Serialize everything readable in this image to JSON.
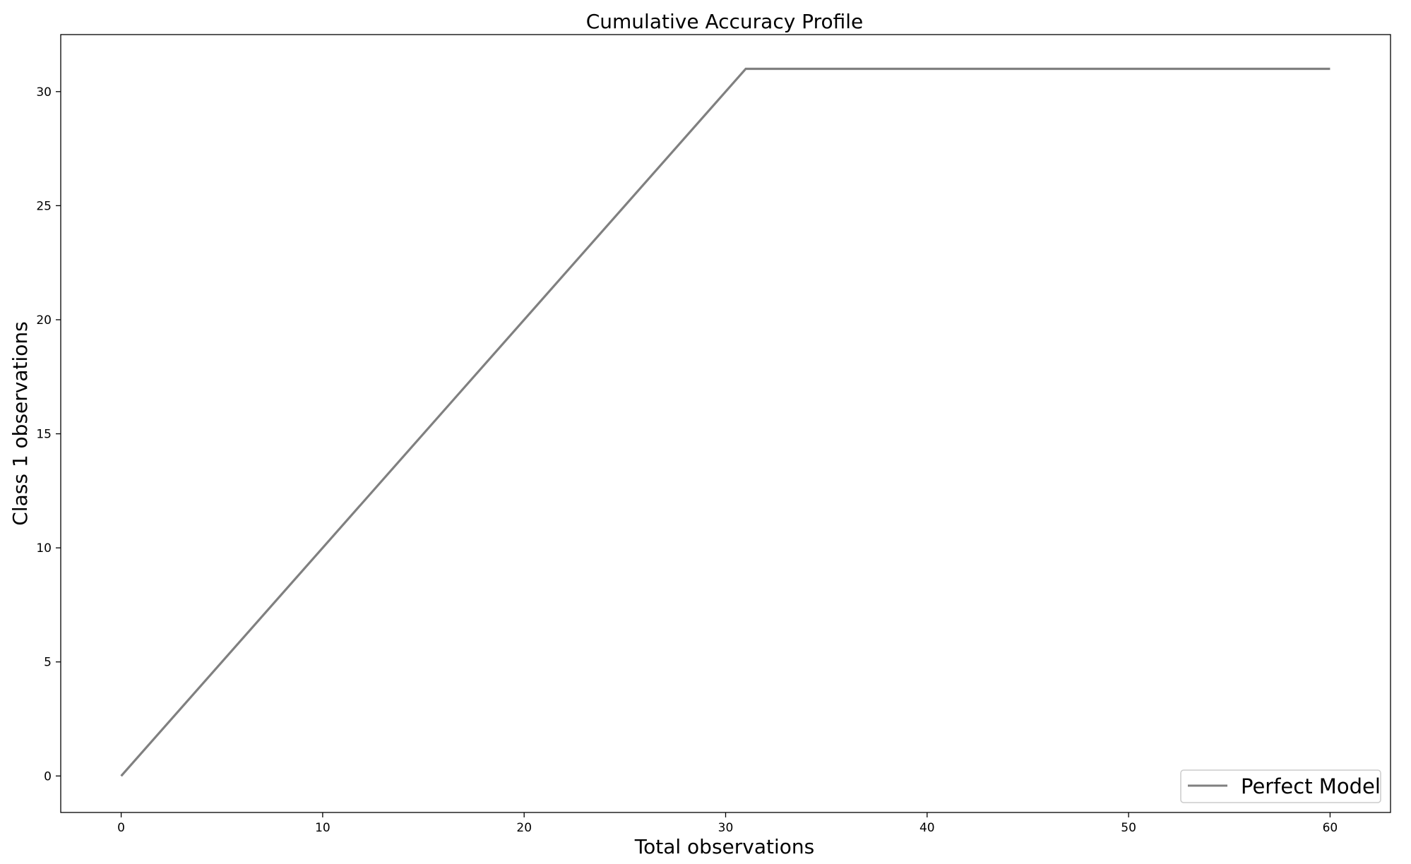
{
  "chart_data": {
    "type": "line",
    "title": "Cumulative Accuracy Profile",
    "xlabel": "Total observations",
    "ylabel": "Class 1 observations",
    "xlim": [
      -3,
      63
    ],
    "ylim": [
      -1.6,
      32.5
    ],
    "xticks": [
      0,
      10,
      20,
      30,
      40,
      50,
      60
    ],
    "yticks": [
      0,
      5,
      10,
      15,
      20,
      25,
      30
    ],
    "grid": false,
    "legend_position": "lower-right",
    "series": [
      {
        "name": "Perfect Model",
        "color": "#808080",
        "x": [
          0,
          31,
          60
        ],
        "y": [
          0,
          31,
          31
        ]
      }
    ]
  }
}
